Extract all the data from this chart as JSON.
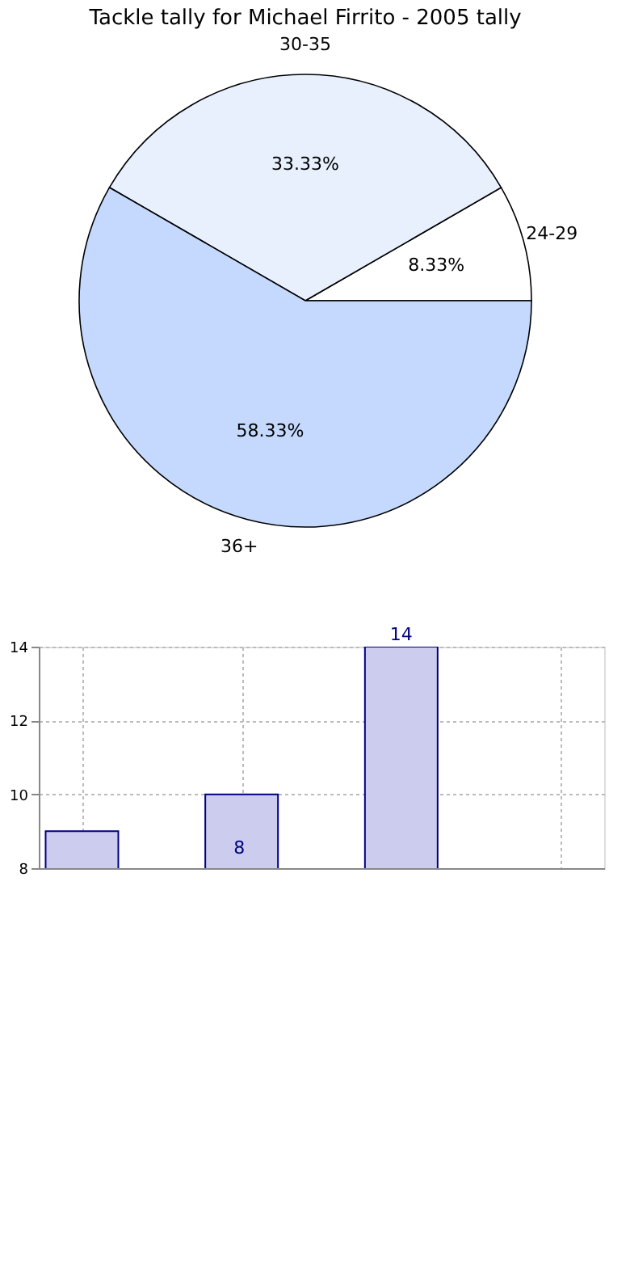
{
  "chart_data": [
    {
      "type": "pie",
      "title": "Tackle tally for Michael Firrito - 2005 tally",
      "categories": [
        "24-29",
        "30-35",
        "36+"
      ],
      "values": [
        8.33,
        33.33,
        58.33
      ],
      "colors": [
        "#ffffff",
        "#e8f0fe",
        "#c4d9fd"
      ],
      "value_labels": [
        "8.33%",
        "33.33%",
        "58.33%"
      ]
    },
    {
      "type": "bar",
      "categories": [
        null,
        null,
        null,
        null
      ],
      "values": [
        9,
        10,
        14,
        null
      ],
      "color": "#ccccee",
      "ylim": [
        8,
        14
      ],
      "yticks": [
        8,
        10,
        12,
        14
      ],
      "grid": true,
      "tick_labels": "y",
      "value_labels": [
        null,
        null,
        "14",
        null
      ],
      "annotations": [
        "8"
      ]
    }
  ]
}
